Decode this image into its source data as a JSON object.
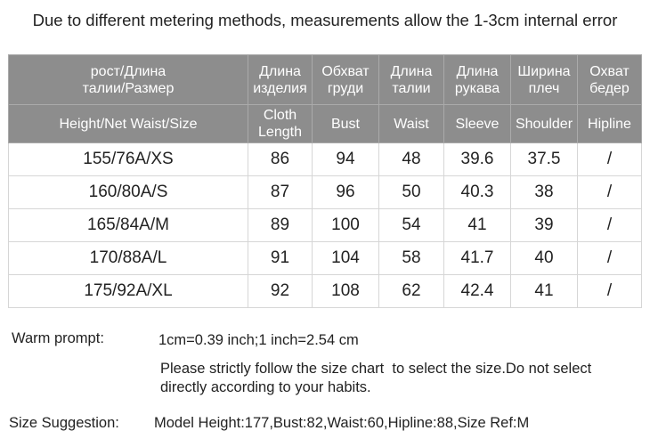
{
  "header": {
    "title": "Due to different metering methods, measurements allow the 1-3cm internal error"
  },
  "table": {
    "header_ru": [
      "рост/Длина\nталии/Размер",
      "Длина\nизделия",
      "Обхват\nгруди",
      "Длина\nталии",
      "Длина\nрукава",
      "Ширина\nплеч",
      "Охват\nбедер"
    ],
    "header_en": [
      "Height/Net Waist/Size",
      "Cloth\nLength",
      "Bust",
      "Waist",
      "Sleeve",
      "Shoulder",
      "Hipline"
    ],
    "rows": [
      [
        "155/76A/XS",
        "86",
        "94",
        "48",
        "39.6",
        "37.5",
        "/"
      ],
      [
        "160/80A/S",
        "87",
        "96",
        "50",
        "40.3",
        "38",
        "/"
      ],
      [
        "165/84A/M",
        "89",
        "100",
        "54",
        "41",
        "39",
        "/"
      ],
      [
        "170/88A/L",
        "91",
        "104",
        "58",
        "41.7",
        "40",
        "/"
      ],
      [
        "175/92A/XL",
        "92",
        "108",
        "62",
        "42.4",
        "41",
        "/"
      ]
    ]
  },
  "notes": {
    "warm_prompt_label": "Warm prompt:",
    "conversion": "1cm=0.39 inch;1 inch=2.54 cm",
    "advice": "Please strictly follow the size chart  to select the size.Do not select directly according to your habits.",
    "suggestion_label": "Size Suggestion:",
    "suggestion": "Model Height:177,Bust:82,Waist:60,Hipline:88,Size Ref:M"
  }
}
